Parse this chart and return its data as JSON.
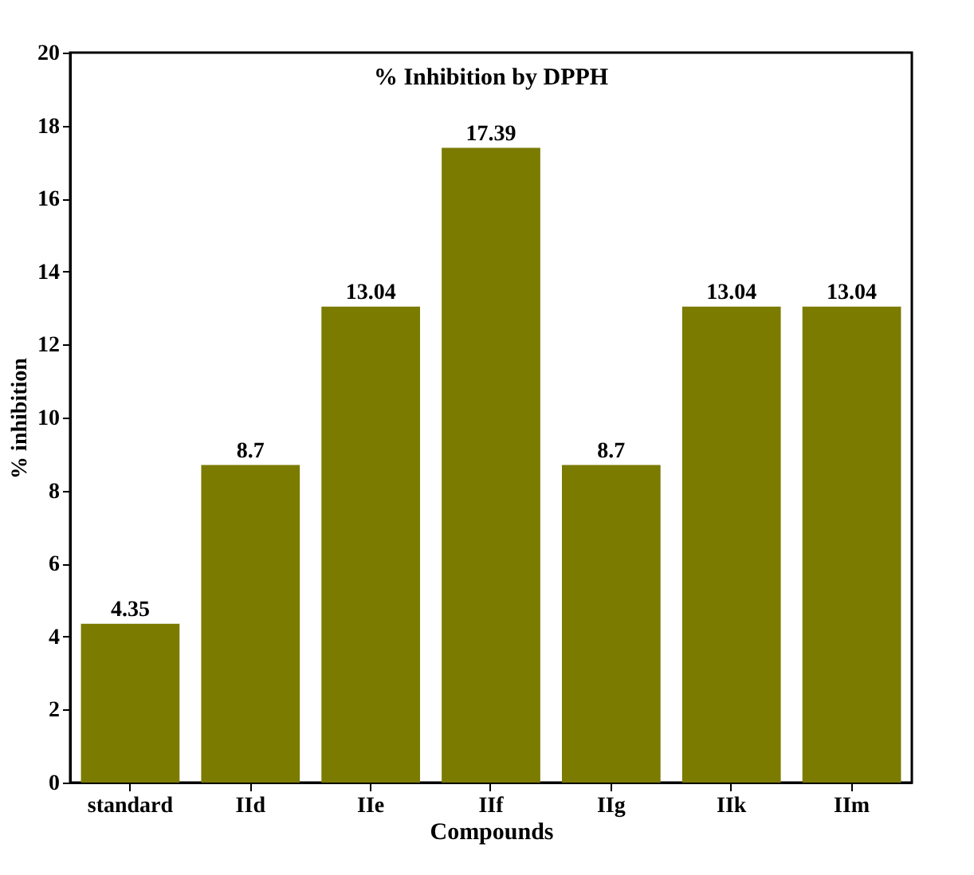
{
  "chart_data": {
    "type": "bar",
    "title": "% Inhibition by DPPH",
    "xlabel": "Compounds",
    "ylabel": "% inhibition",
    "categories": [
      "standard",
      "IId",
      "IIe",
      "IIf",
      "IIg",
      "IIk",
      "IIm"
    ],
    "values": [
      4.35,
      8.7,
      13.04,
      17.39,
      8.7,
      13.04,
      13.04
    ],
    "color": "#7b7b00",
    "ylim": [
      0,
      20
    ],
    "yticks": [
      0,
      2,
      4,
      6,
      8,
      10,
      12,
      14,
      16,
      18,
      20
    ],
    "data_labels": true,
    "grid": false
  }
}
